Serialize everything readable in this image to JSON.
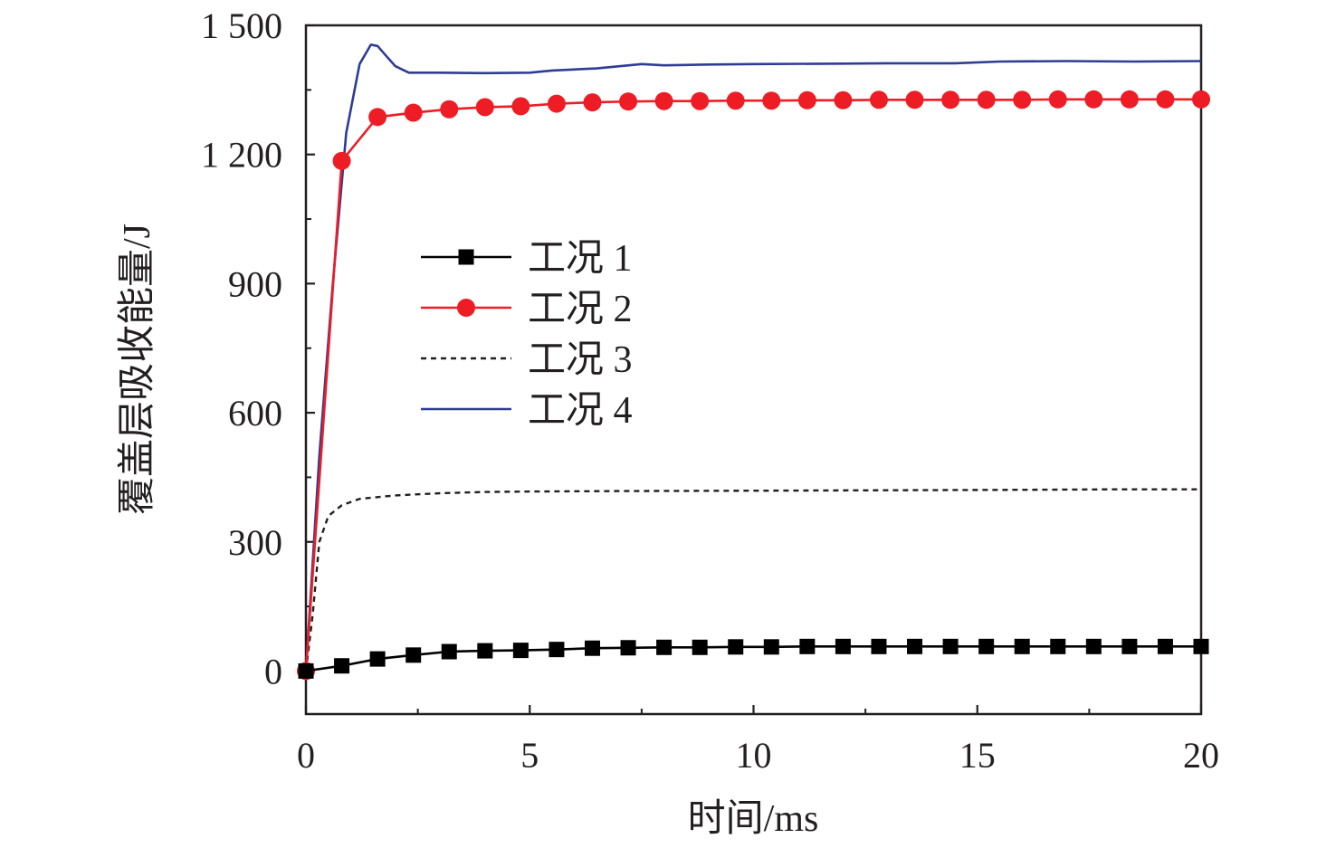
{
  "chart_data": {
    "type": "line",
    "xlabel": "时间/ms",
    "ylabel": "覆盖层吸收能量/J",
    "xlim": [
      0,
      20
    ],
    "ylim": [
      -100,
      1500
    ],
    "x_ticks": [
      0,
      5,
      10,
      15,
      20
    ],
    "x_tick_labels": [
      "0",
      "5",
      "10",
      "15",
      "20"
    ],
    "y_ticks": [
      0,
      300,
      600,
      900,
      1200,
      1500
    ],
    "y_tick_labels": [
      "0",
      "300",
      "600",
      "900",
      "1 200",
      "1 500"
    ],
    "grid": false,
    "legend_position": "center-left",
    "series": [
      {
        "name": "工况 1",
        "color": "#000000",
        "style": "solid",
        "marker": "square",
        "points": [
          [
            0,
            0
          ],
          [
            0.8,
            12
          ],
          [
            1.6,
            28
          ],
          [
            2.4,
            37
          ],
          [
            3.2,
            45
          ],
          [
            4.0,
            47
          ],
          [
            4.8,
            48
          ],
          [
            5.6,
            50
          ],
          [
            6.4,
            53
          ],
          [
            7.2,
            54
          ],
          [
            8.0,
            55
          ],
          [
            8.8,
            55
          ],
          [
            9.6,
            56
          ],
          [
            10.4,
            56
          ],
          [
            11.2,
            57
          ],
          [
            12.0,
            57
          ],
          [
            12.8,
            57
          ],
          [
            13.6,
            57
          ],
          [
            14.4,
            57
          ],
          [
            15.2,
            57
          ],
          [
            16.0,
            57
          ],
          [
            16.8,
            57
          ],
          [
            17.6,
            57
          ],
          [
            18.4,
            57
          ],
          [
            19.2,
            57
          ],
          [
            20.0,
            57
          ]
        ]
      },
      {
        "name": "工况 2",
        "color": "#ee1c25",
        "style": "solid",
        "marker": "circle",
        "points": [
          [
            0,
            0
          ],
          [
            0.8,
            1185
          ],
          [
            1.6,
            1287
          ],
          [
            2.4,
            1297
          ],
          [
            3.2,
            1305
          ],
          [
            4.0,
            1310
          ],
          [
            4.8,
            1312
          ],
          [
            5.6,
            1318
          ],
          [
            6.4,
            1321
          ],
          [
            7.2,
            1323
          ],
          [
            8.0,
            1324
          ],
          [
            8.8,
            1324
          ],
          [
            9.6,
            1325
          ],
          [
            10.4,
            1325
          ],
          [
            11.2,
            1326
          ],
          [
            12.0,
            1326
          ],
          [
            12.8,
            1327
          ],
          [
            13.6,
            1327
          ],
          [
            14.4,
            1327
          ],
          [
            15.2,
            1327
          ],
          [
            16.0,
            1327
          ],
          [
            16.8,
            1328
          ],
          [
            17.6,
            1328
          ],
          [
            18.4,
            1328
          ],
          [
            19.2,
            1328
          ],
          [
            20.0,
            1328
          ]
        ]
      },
      {
        "name": "工况 3",
        "color": "#231f20",
        "style": "dashed",
        "marker": "none",
        "points": [
          [
            0,
            0
          ],
          [
            0.15,
            130
          ],
          [
            0.3,
            300
          ],
          [
            0.5,
            360
          ],
          [
            0.8,
            385
          ],
          [
            1.2,
            400
          ],
          [
            2.0,
            408
          ],
          [
            3.0,
            413
          ],
          [
            4.0,
            416
          ],
          [
            5.0,
            417
          ],
          [
            7.0,
            418
          ],
          [
            10.0,
            419
          ],
          [
            13.0,
            420
          ],
          [
            16.0,
            421
          ],
          [
            18.0,
            422
          ],
          [
            20.0,
            422
          ]
        ]
      },
      {
        "name": "工况 4",
        "color": "#2e3c96",
        "style": "solid",
        "marker": "none",
        "points": [
          [
            0,
            0
          ],
          [
            0.3,
            500
          ],
          [
            0.6,
            900
          ],
          [
            0.9,
            1250
          ],
          [
            1.2,
            1410
          ],
          [
            1.45,
            1455
          ],
          [
            1.6,
            1452
          ],
          [
            1.8,
            1428
          ],
          [
            2.0,
            1405
          ],
          [
            2.3,
            1390
          ],
          [
            3.0,
            1390
          ],
          [
            4.0,
            1389
          ],
          [
            5.0,
            1390
          ],
          [
            5.5,
            1395
          ],
          [
            6.5,
            1400
          ],
          [
            7.5,
            1410
          ],
          [
            8.0,
            1407
          ],
          [
            9.0,
            1409
          ],
          [
            10.0,
            1410
          ],
          [
            12.0,
            1411
          ],
          [
            13.0,
            1412
          ],
          [
            14.5,
            1412
          ],
          [
            15.5,
            1416
          ],
          [
            17.0,
            1417
          ],
          [
            18.5,
            1416
          ],
          [
            20.0,
            1417
          ]
        ]
      }
    ]
  }
}
